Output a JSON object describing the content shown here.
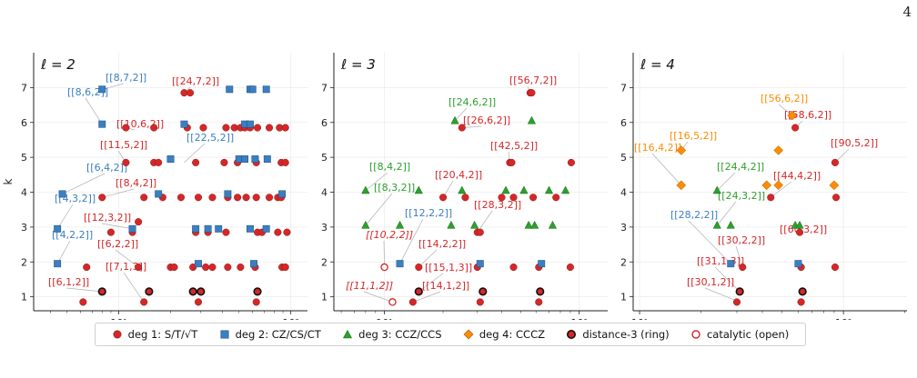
{
  "page_number": "4",
  "legend": [
    {
      "key": "deg1",
      "label": "deg 1: S/T/√T",
      "marker": "circle",
      "color": "#d62728"
    },
    {
      "key": "deg2",
      "label": "deg 2: CZ/CS/CT",
      "marker": "square",
      "color": "#3a7fc1"
    },
    {
      "key": "deg3",
      "label": "deg 3: CCZ/CCS",
      "marker": "triangle",
      "color": "#2ca02c"
    },
    {
      "key": "deg4",
      "label": "deg 4: CCCZ",
      "marker": "diamond",
      "color": "#ff8c00"
    },
    {
      "key": "dist3",
      "label": "distance-3 (ring)",
      "marker": "ring",
      "color": "#222222"
    },
    {
      "key": "cat",
      "label": "catalytic (open)",
      "marker": "open",
      "color": "#d62728"
    }
  ],
  "chart_data": [
    {
      "type": "scatter",
      "panel_label": "ℓ = 2",
      "xscale": "log",
      "xlim": [
        3.2,
        125
      ],
      "ylim": [
        0.6,
        8.0
      ],
      "xticks": [
        "10¹",
        "10²"
      ],
      "yticks": [
        "1",
        "2",
        "3",
        "4",
        "5",
        "6",
        "7"
      ],
      "ylabel": "k",
      "series": [
        {
          "degree": 1,
          "points": [
            [
              6.2,
              0.85
            ],
            [
              8,
              1.15
            ],
            [
              14,
              0.85
            ],
            [
              15,
              1.15
            ],
            [
              27,
              1.15
            ],
            [
              29,
              0.85
            ],
            [
              30,
              1.15
            ],
            [
              63,
              0.85
            ],
            [
              64,
              1.15
            ],
            [
              6.5,
              1.85
            ],
            [
              13,
              1.85
            ],
            [
              20,
              1.85
            ],
            [
              21,
              1.85
            ],
            [
              27,
              1.85
            ],
            [
              32,
              1.85
            ],
            [
              35,
              1.85
            ],
            [
              43,
              1.85
            ],
            [
              51,
              1.85
            ],
            [
              62,
              1.85
            ],
            [
              89,
              1.85
            ],
            [
              93,
              1.85
            ],
            [
              9,
              2.85
            ],
            [
              12,
              2.85
            ],
            [
              13,
              3.15
            ],
            [
              28,
              2.85
            ],
            [
              33,
              2.85
            ],
            [
              42,
              2.85
            ],
            [
              64,
              2.85
            ],
            [
              68,
              2.85
            ],
            [
              84,
              2.85
            ],
            [
              95,
              2.85
            ],
            [
              8,
              3.85
            ],
            [
              14,
              3.85
            ],
            [
              18,
              3.85
            ],
            [
              23,
              3.85
            ],
            [
              29,
              3.85
            ],
            [
              35,
              3.85
            ],
            [
              43,
              3.85
            ],
            [
              49,
              3.85
            ],
            [
              55,
              3.85
            ],
            [
              63,
              3.85
            ],
            [
              75,
              3.85
            ],
            [
              84,
              3.85
            ],
            [
              88,
              3.85
            ],
            [
              11,
              4.85
            ],
            [
              16,
              4.85
            ],
            [
              17,
              4.85
            ],
            [
              28,
              4.85
            ],
            [
              41,
              4.85
            ],
            [
              49,
              4.85
            ],
            [
              63,
              4.85
            ],
            [
              88,
              4.85
            ],
            [
              93,
              4.85
            ],
            [
              11,
              5.85
            ],
            [
              16,
              5.85
            ],
            [
              25,
              5.85
            ],
            [
              31,
              5.85
            ],
            [
              42,
              5.85
            ],
            [
              47,
              5.85
            ],
            [
              51,
              5.85
            ],
            [
              54,
              5.85
            ],
            [
              58,
              5.85
            ],
            [
              64,
              5.85
            ],
            [
              75,
              5.85
            ],
            [
              86,
              5.85
            ],
            [
              93,
              5.85
            ],
            [
              24,
              6.85
            ],
            [
              26,
              6.85
            ]
          ]
        },
        {
          "degree": 2,
          "points": [
            [
              4.4,
              1.95
            ],
            [
              29,
              1.95
            ],
            [
              61,
              1.95
            ],
            [
              4.4,
              2.95
            ],
            [
              12,
              2.95
            ],
            [
              28,
              2.95
            ],
            [
              33,
              2.95
            ],
            [
              38,
              2.95
            ],
            [
              58,
              2.95
            ],
            [
              72,
              2.95
            ],
            [
              4.7,
              3.95
            ],
            [
              17,
              3.95
            ],
            [
              43,
              3.95
            ],
            [
              89,
              3.95
            ],
            [
              20,
              4.95
            ],
            [
              50,
              4.95
            ],
            [
              54,
              4.95
            ],
            [
              62,
              4.95
            ],
            [
              73,
              4.95
            ],
            [
              8,
              5.95
            ],
            [
              24,
              5.95
            ],
            [
              54,
              5.95
            ],
            [
              58,
              5.95
            ],
            [
              8,
              6.95
            ],
            [
              44,
              6.95
            ],
            [
              58,
              6.95
            ],
            [
              60,
              6.95
            ],
            [
              72,
              6.95
            ]
          ]
        },
        {
          "degree": "dist3",
          "points": [
            [
              8,
              1.15
            ],
            [
              15,
              1.15
            ],
            [
              27,
              1.15
            ],
            [
              30,
              1.15
            ],
            [
              64,
              1.15
            ]
          ]
        }
      ],
      "annotations": [
        "[[6,1,2]]",
        "[[7,1,3]]",
        "[[6,2,2]]",
        "[[4,2,2]]",
        "[[12,3,2]]",
        "[[4,3,2]]",
        "[[8,4,2]]",
        "[[6,4,2]]",
        "[[11,5,2]]",
        "[[22,5,2]]",
        "[[10,6,2]]",
        "[[8,6,2]]",
        "[[8,7,2]]",
        "[[24,7,2]]"
      ]
    },
    {
      "type": "scatter",
      "panel_label": "ℓ = 3",
      "xscale": "log",
      "xlim": [
        5.5,
        140
      ],
      "ylim": [
        0.6,
        8.0
      ],
      "xticks": [
        "10¹",
        "10²"
      ],
      "yticks": [
        "1",
        "2",
        "3",
        "4",
        "5",
        "6",
        "7"
      ],
      "series": [
        {
          "degree": 1,
          "points": [
            [
              14,
              0.85
            ],
            [
              15,
              1.15
            ],
            [
              31,
              0.85
            ],
            [
              32,
              1.15
            ],
            [
              62,
              0.85
            ],
            [
              63,
              1.15
            ],
            [
              15,
              1.85
            ],
            [
              30,
              1.85
            ],
            [
              46,
              1.85
            ],
            [
              62,
              1.85
            ],
            [
              90,
              1.85
            ],
            [
              30,
              2.85
            ],
            [
              31,
              2.85
            ],
            [
              20,
              3.85
            ],
            [
              26,
              3.85
            ],
            [
              40,
              3.85
            ],
            [
              46,
              3.85
            ],
            [
              58,
              3.85
            ],
            [
              76,
              3.85
            ],
            [
              44,
              4.85
            ],
            [
              45,
              4.85
            ],
            [
              91,
              4.85
            ],
            [
              25,
              5.85
            ],
            [
              56,
              6.85
            ],
            [
              57,
              6.85
            ]
          ]
        },
        {
          "degree": 2,
          "points": [
            [
              12,
              1.95
            ],
            [
              31,
              1.95
            ],
            [
              64,
              1.95
            ]
          ]
        },
        {
          "degree": 3,
          "points": [
            [
              8,
              3.05
            ],
            [
              12,
              3.05
            ],
            [
              22,
              3.05
            ],
            [
              29,
              3.05
            ],
            [
              55,
              3.05
            ],
            [
              59,
              3.05
            ],
            [
              73,
              3.05
            ],
            [
              8,
              4.05
            ],
            [
              15,
              4.05
            ],
            [
              25,
              4.05
            ],
            [
              42,
              4.05
            ],
            [
              52,
              4.05
            ],
            [
              70,
              4.05
            ],
            [
              85,
              4.05
            ],
            [
              23,
              6.05
            ],
            [
              57,
              6.05
            ]
          ]
        },
        {
          "degree": "dist3",
          "points": [
            [
              15,
              1.15
            ],
            [
              32,
              1.15
            ],
            [
              63,
              1.15
            ]
          ]
        },
        {
          "degree": "catalytic",
          "points": [
            [
              10,
              1.85
            ],
            [
              11,
              0.85
            ]
          ]
        }
      ],
      "annotations": [
        "[[11,1,2]]",
        "[[14,1,2]]",
        "[[15,1,3]]",
        "[[14,2,2]]",
        "[[10,2,2]]",
        "[[12,2,2]]",
        "[[28,3,2]]",
        "[[8,3,2]]",
        "[[8,4,2]]",
        "[[20,4,2]]",
        "[[42,5,2]]",
        "[[26,6,2]]",
        "[[24,6,2]]",
        "[[56,7,2]]"
      ]
    },
    {
      "type": "scatter",
      "panel_label": "ℓ = 4",
      "xscale": "log",
      "xlim": [
        9.3,
        205
      ],
      "ylim": [
        0.6,
        8.0
      ],
      "xticks": [
        "10¹",
        "10²"
      ],
      "yticks": [
        "1",
        "2",
        "3",
        "4",
        "5",
        "6",
        "7"
      ],
      "series": [
        {
          "degree": 1,
          "points": [
            [
              30,
              0.85
            ],
            [
              31,
              1.15
            ],
            [
              62,
              0.85
            ],
            [
              63,
              1.15
            ],
            [
              32,
              1.85
            ],
            [
              62,
              1.85
            ],
            [
              91,
              1.85
            ],
            [
              61,
              2.85
            ],
            [
              44,
              3.85
            ],
            [
              92,
              3.85
            ],
            [
              91,
              4.85
            ],
            [
              58,
              5.85
            ]
          ]
        },
        {
          "degree": 2,
          "points": [
            [
              28,
              1.95
            ],
            [
              60,
              1.95
            ]
          ]
        },
        {
          "degree": 3,
          "points": [
            [
              24,
              3.05
            ],
            [
              28,
              3.05
            ],
            [
              58,
              3.05
            ],
            [
              61,
              3.05
            ],
            [
              24,
              4.05
            ]
          ]
        },
        {
          "degree": 4,
          "points": [
            [
              16,
              4.2
            ],
            [
              42,
              4.2
            ],
            [
              48,
              4.2
            ],
            [
              90,
              4.2
            ],
            [
              16,
              5.2
            ],
            [
              48,
              5.2
            ],
            [
              56,
              6.2
            ]
          ]
        },
        {
          "degree": "dist3",
          "points": [
            [
              31,
              1.15
            ],
            [
              63,
              1.15
            ]
          ]
        }
      ],
      "annotations": [
        "[[30,1,2]]",
        "[[31,1,3]]",
        "[[30,2,2]]",
        "[[28,2,2]]",
        "[[60,3,2]]",
        "[[24,3,2]]",
        "[[44,4,2]]",
        "[[16,4,2]]",
        "[[24,4,2]]",
        "[[16,5,2]]",
        "[[90,5,2]]",
        "[[56,6,2]]",
        "[[58,6,2]]"
      ]
    }
  ]
}
